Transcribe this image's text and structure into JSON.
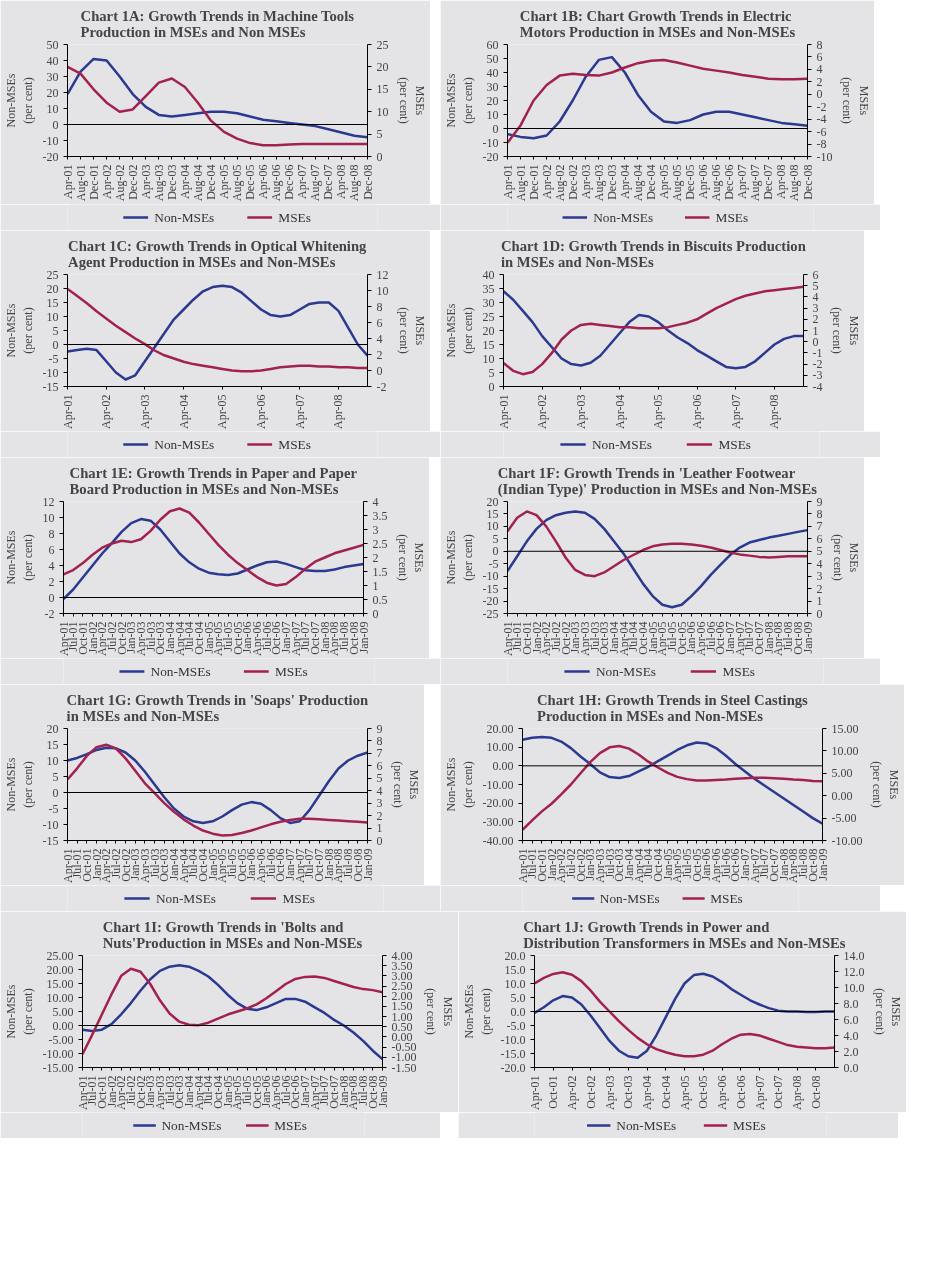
{
  "chart_data": [
    {
      "type": "line",
      "title": "Chart 1A: Growth Trends in Machine Tools Production in MSEs and Non MSEs",
      "ylabel": "Non-MSEs\n(per cent)",
      "y2label": "MSEs\n(per cent)",
      "legend": "bottom",
      "ylim": [
        -20,
        50
      ],
      "yticks": [
        -20,
        -10,
        0,
        10,
        20,
        30,
        40,
        50
      ],
      "y2lim": [
        0,
        25
      ],
      "y2ticks": [
        0,
        5,
        10,
        15,
        20,
        25
      ],
      "ref_lines": [
        {
          "axis": "y",
          "value": 0,
          "color": "#000000"
        }
      ],
      "categories": [
        "Apr-01",
        "Aug-01",
        "Dec-01",
        "Apr-02",
        "Aug-02",
        "Dec-02",
        "Apr-03",
        "Aug-03",
        "Dec-03",
        "Apr-04",
        "Aug-04",
        "Dec-04",
        "Apr-05",
        "Aug-05",
        "Dec-05",
        "Apr-06",
        "Aug-06",
        "Dec-06",
        "Apr-07",
        "Aug-07",
        "Dec-07",
        "Apr-08",
        "Aug-08",
        "Dec-08"
      ],
      "series": [
        {
          "name": "Non-MSEs",
          "color": "#2b3990",
          "values": [
            19,
            33,
            41,
            40,
            30,
            19,
            11,
            6,
            5,
            6,
            7,
            8,
            8,
            7,
            5,
            3,
            2,
            1,
            0,
            -1,
            -3,
            -5,
            -7,
            -8
          ]
        },
        {
          "name": "MSEs",
          "color": "#a3214f",
          "axis": "y2",
          "values": [
            20,
            18.5,
            15,
            12,
            10,
            10.5,
            13.5,
            16.5,
            17.4,
            15.5,
            12,
            8,
            5.5,
            4,
            3,
            2.5,
            2.5,
            2.7,
            2.8,
            2.8,
            2.8,
            2.8,
            2.8,
            2.8
          ]
        }
      ]
    },
    {
      "type": "line",
      "title": "Chart 1B: Chart Growth Trends in Electric Motors Production in MSEs and Non-MSEs",
      "ylabel": "Non-MSEs\n(per cent)",
      "y2label": "MSEs\n(per cent)",
      "legend": "bottom",
      "ylim": [
        -20,
        60
      ],
      "yticks": [
        -20,
        -10,
        0,
        10,
        20,
        30,
        40,
        50,
        60
      ],
      "y2lim": [
        -10,
        8
      ],
      "y2ticks": [
        -10,
        -8,
        -6,
        -4,
        -2,
        0,
        2,
        4,
        6,
        8
      ],
      "ref_lines": [
        {
          "axis": "y",
          "value": 0,
          "color": "#000000"
        }
      ],
      "categories": [
        "Apr-01",
        "Aug-01",
        "Dec-01",
        "Apr-02",
        "Aug-02",
        "Dec-02",
        "Apr-03",
        "Aug-03",
        "Dec-03",
        "Apr-04",
        "Aug-04",
        "Dec-04",
        "Apr-05",
        "Aug-05",
        "Dec-05",
        "Apr-06",
        "Aug-06",
        "Dec-06",
        "Apr-07",
        "Aug-07",
        "Dec-07",
        "Apr-08",
        "Aug-08",
        "Dec-08"
      ],
      "series": [
        {
          "name": "Non-MSEs",
          "color": "#2b3990",
          "values": [
            -4,
            -6,
            -7,
            -5,
            5,
            20,
            37,
            49,
            51,
            40,
            24,
            12,
            5,
            4,
            6,
            10,
            12,
            12,
            10,
            8,
            6,
            4,
            3,
            2
          ]
        },
        {
          "name": "MSEs",
          "color": "#a3214f",
          "axis": "y2",
          "values": [
            -7.8,
            -5,
            -1,
            1.5,
            3,
            3.3,
            3.1,
            3,
            3.5,
            4.3,
            5,
            5.4,
            5.5,
            5.1,
            4.6,
            4.1,
            3.8,
            3.5,
            3.1,
            2.8,
            2.5,
            2.4,
            2.4,
            2.5
          ]
        }
      ]
    },
    {
      "type": "line",
      "title": "Chart 1C: Growth Trends in Optical Whitening Agent Production in MSEs and Non-MSEs",
      "ylabel": "Non-MSEs\n(per cent)",
      "y2label": "MSEs\n(per cent)",
      "legend": "bottom",
      "ylim": [
        -15,
        25
      ],
      "yticks": [
        -15,
        -10,
        -5,
        0,
        5,
        10,
        15,
        20,
        25
      ],
      "y2lim": [
        -2,
        12
      ],
      "y2ticks": [
        -2,
        0,
        2,
        4,
        6,
        8,
        10,
        12
      ],
      "ref_lines": [
        {
          "axis": "y",
          "value": 0,
          "color": "#000000"
        }
      ],
      "categories": [
        "Apr-01",
        null,
        null,
        null,
        "Apr-02",
        null,
        null,
        null,
        "Apr-03",
        null,
        null,
        null,
        "Apr-04",
        null,
        null,
        null,
        "Apr-05",
        null,
        null,
        null,
        "Apr-06",
        null,
        null,
        null,
        "Apr-07",
        null,
        null,
        null,
        "Apr-08",
        null,
        null,
        null
      ],
      "series": [
        {
          "name": "Non-MSEs",
          "color": "#2b3990",
          "values": [
            -2.5,
            -2,
            -1.5,
            -2,
            -6,
            -10,
            -12.5,
            -11,
            -6,
            -1,
            4,
            9,
            12.5,
            16,
            19,
            20.5,
            21,
            20.5,
            18.5,
            15.5,
            12.5,
            10.5,
            10,
            10.5,
            12.5,
            14.5,
            15,
            15,
            12,
            6,
            0,
            -4
          ]
        },
        {
          "name": "MSEs",
          "color": "#a3214f",
          "axis": "y2",
          "values": [
            10.2,
            9.3,
            8.4,
            7.4,
            6.5,
            5.6,
            4.8,
            4,
            3.3,
            2.5,
            1.9,
            1.5,
            1.1,
            0.8,
            0.6,
            0.4,
            0.2,
            0,
            -0.1,
            -0.1,
            0,
            0.2,
            0.4,
            0.5,
            0.6,
            0.6,
            0.5,
            0.5,
            0.4,
            0.4,
            0.3,
            0.3
          ]
        }
      ]
    },
    {
      "type": "line",
      "title": "Chart 1D: Growth Trends in Biscuits Production in MSEs and Non-MSEs",
      "ylabel": "Non-MSEs\n(per cent)",
      "y2label": "MSEs\n(per cent)",
      "legend": "bottom",
      "ylim": [
        0,
        40
      ],
      "yticks": [
        0,
        5,
        10,
        15,
        20,
        25,
        30,
        35,
        40
      ],
      "y2lim": [
        -4,
        6
      ],
      "y2ticks": [
        -4,
        -3,
        -2,
        -1,
        0,
        1,
        2,
        3,
        4,
        5,
        6
      ],
      "categories": [
        "Apr-01",
        null,
        null,
        null,
        "Apr-02",
        null,
        null,
        null,
        "Apr-03",
        null,
        null,
        null,
        "Apr-04",
        null,
        null,
        null,
        "Apr-05",
        null,
        null,
        null,
        "Apr-06",
        null,
        null,
        null,
        "Apr-07",
        null,
        null,
        null,
        "Apr-08",
        null,
        null,
        null
      ],
      "series": [
        {
          "name": "Non-MSEs",
          "color": "#2b3990",
          "values": [
            34,
            31,
            27,
            23,
            18,
            14,
            10,
            8,
            7.5,
            8.5,
            11,
            15,
            19,
            23,
            25.5,
            25,
            23,
            20,
            17.5,
            15.5,
            13,
            11,
            9,
            7,
            6.5,
            7,
            9,
            12,
            15,
            17,
            18,
            18
          ]
        },
        {
          "name": "MSEs",
          "color": "#a3214f",
          "axis": "y2",
          "values": [
            -1.9,
            -2.6,
            -2.9,
            -2.7,
            -2,
            -1,
            0.2,
            1,
            1.5,
            1.6,
            1.5,
            1.4,
            1.3,
            1.3,
            1.2,
            1.2,
            1.2,
            1.3,
            1.5,
            1.7,
            2,
            2.5,
            3,
            3.4,
            3.8,
            4.1,
            4.3,
            4.5,
            4.6,
            4.7,
            4.8,
            4.9
          ]
        }
      ]
    },
    {
      "type": "line",
      "title": "Chart 1E: Growth Trends in Paper and Paper Board Production in MSEs and Non-MSEs",
      "ylabel": "Non-MSEs\n(per cent)",
      "y2label": "MSEs\n(per cent)",
      "legend": "bottom",
      "ylim": [
        -2,
        12
      ],
      "yticks": [
        -2,
        0,
        2,
        4,
        6,
        8,
        10,
        12
      ],
      "y2lim": [
        0,
        4
      ],
      "y2ticks": [
        0,
        0.5,
        1,
        1.5,
        2,
        2.5,
        3,
        3.5,
        4
      ],
      "ref_lines": [
        {
          "axis": "y",
          "value": 0,
          "color": "#000000"
        }
      ],
      "categories": [
        "Apr-01",
        "Jul-01",
        "Oct-01",
        "Jan-02",
        "Apr-02",
        "Jul-02",
        "Oct-02",
        "Jan-03",
        "Apr-03",
        "Jul-03",
        "Oct-03",
        "Jan-04",
        "Apr-04",
        "Jul-04",
        "Oct-04",
        "Jan-05",
        "Apr-05",
        "Jul-05",
        "Oct-05",
        "Jan-06",
        "Apr-06",
        "Jul-06",
        "Oct-06",
        "Jan-07",
        "Apr-07",
        "Jul-07",
        "Oct-07",
        "Jan-08",
        "Apr-08",
        "Jul-08",
        "Oct-08",
        "Jan-09"
      ],
      "series": [
        {
          "name": "Non-MSEs",
          "color": "#2b3990",
          "values": [
            -0.2,
            1,
            2.5,
            4,
            5.5,
            6.8,
            8.2,
            9.3,
            9.8,
            9.6,
            8.5,
            7,
            5.5,
            4.4,
            3.6,
            3.1,
            2.9,
            2.8,
            3,
            3.5,
            4,
            4.4,
            4.5,
            4.2,
            3.8,
            3.4,
            3.3,
            3.3,
            3.5,
            3.8,
            4,
            4.2
          ]
        },
        {
          "name": "MSEs",
          "color": "#a3214f",
          "axis": "y2",
          "values": [
            1.4,
            1.55,
            1.8,
            2.1,
            2.35,
            2.5,
            2.6,
            2.55,
            2.65,
            2.95,
            3.35,
            3.65,
            3.75,
            3.6,
            3.25,
            2.85,
            2.45,
            2.1,
            1.8,
            1.55,
            1.3,
            1.1,
            1.0,
            1.05,
            1.3,
            1.6,
            1.85,
            2.0,
            2.15,
            2.25,
            2.35,
            2.45
          ]
        }
      ]
    },
    {
      "type": "line",
      "title": "Chart 1F: Growth Trends in 'Leather Footwear (Indian Type)' Production in MSEs and Non-MSEs",
      "ylabel": "Non-MSEs\n(per cent)",
      "y2label": "MSEs\n(per cent)",
      "legend": "bottom",
      "ylim": [
        -25,
        20
      ],
      "yticks": [
        -25,
        -20,
        -15,
        -10,
        -5,
        0,
        5,
        10,
        15,
        20
      ],
      "y2lim": [
        0,
        9
      ],
      "y2ticks": [
        0,
        1,
        2,
        3,
        4,
        5,
        6,
        7,
        8,
        9
      ],
      "ref_lines": [
        {
          "axis": "y",
          "value": 0,
          "color": "#000000"
        }
      ],
      "categories": [
        "Apr-01",
        "Jul-01",
        "Oct-01",
        "Jan-02",
        "Apr-02",
        "Jul-02",
        "Oct-02",
        "Jan-03",
        "Apr-03",
        "Jul-03",
        "Oct-03",
        "Jan-04",
        "Apr-04",
        "Jul-04",
        "Oct-04",
        "Jan-05",
        "Apr-05",
        "Jul-05",
        "Oct-05",
        "Jan-06",
        "Apr-06",
        "Jul-06",
        "Oct-06",
        "Jan-07",
        "Apr-07",
        "Jul-07",
        "Oct-07",
        "Jan-08",
        "Apr-08",
        "Jul-08",
        "Oct-08",
        "Jan-09"
      ],
      "series": [
        {
          "name": "Non-MSEs",
          "color": "#2b3990",
          "values": [
            -8,
            -2,
            4,
            9,
            12.5,
            14.5,
            15.5,
            16,
            15.5,
            13,
            9,
            4,
            -1,
            -7,
            -13,
            -18,
            -21.5,
            -22.5,
            -21.5,
            -18,
            -14,
            -9.5,
            -5.5,
            -1.5,
            1.5,
            3.5,
            4.5,
            5.5,
            6.2,
            7,
            7.8,
            8.5
          ]
        },
        {
          "name": "MSEs",
          "color": "#a3214f",
          "axis": "y2",
          "values": [
            6.6,
            7.7,
            8.2,
            7.9,
            7,
            5.8,
            4.5,
            3.5,
            3.1,
            3,
            3.3,
            3.8,
            4.3,
            4.7,
            5.1,
            5.4,
            5.55,
            5.6,
            5.6,
            5.55,
            5.45,
            5.3,
            5.1,
            4.9,
            4.75,
            4.65,
            4.55,
            4.5,
            4.55,
            4.6,
            4.6,
            4.6
          ]
        }
      ]
    },
    {
      "type": "line",
      "title": "Chart 1G: Growth Trends in 'Soaps' Production in MSEs and Non-MSEs",
      "ylabel": "Non-MSEs\n(per cent)",
      "y2label": "MSEs\n(per cent)",
      "legend": "bottom",
      "ylim": [
        -15,
        20
      ],
      "yticks": [
        -15,
        -10,
        -5,
        0,
        5,
        10,
        15,
        20
      ],
      "y2lim": [
        0,
        9
      ],
      "y2ticks": [
        0,
        1,
        2,
        3,
        4,
        5,
        6,
        7,
        8,
        9
      ],
      "ref_lines": [
        {
          "axis": "y",
          "value": 0,
          "color": "#000000"
        }
      ],
      "categories": [
        "Apr-01",
        "Jul-01",
        "Oct-01",
        "Jan-02",
        "Apr-02",
        "Jul-02",
        "Oct-02",
        "Jan-03",
        "Apr-03",
        "Jul-03",
        "Oct-03",
        "Jan-04",
        "Apr-04",
        "Jul-04",
        "Oct-04",
        "Jan-05",
        "Apr-05",
        "Jul-05",
        "Oct-05",
        "Jan-06",
        "Apr-06",
        "Jul-06",
        "Oct-06",
        "Jan-07",
        "Apr-07",
        "Jul-07",
        "Oct-07",
        "Jan-08",
        "Apr-08",
        "Jul-08",
        "Oct-08",
        "Jan-09"
      ],
      "series": [
        {
          "name": "Non-MSEs",
          "color": "#2b3990",
          "values": [
            10,
            10.8,
            12,
            13.3,
            14,
            13.8,
            12.5,
            10,
            6.5,
            2.5,
            -1.5,
            -5,
            -7.5,
            -9,
            -9.5,
            -9,
            -7.5,
            -5.5,
            -3.8,
            -3,
            -3.5,
            -5.5,
            -8,
            -9.5,
            -9,
            -5.5,
            -1,
            3.5,
            7.5,
            10,
            11.5,
            12.5
          ]
        },
        {
          "name": "MSEs",
          "color": "#a3214f",
          "axis": "y2",
          "values": [
            4.9,
            5.8,
            6.8,
            7.5,
            7.7,
            7.4,
            6.6,
            5.6,
            4.6,
            3.8,
            3,
            2.3,
            1.7,
            1.2,
            0.8,
            0.55,
            0.4,
            0.45,
            0.6,
            0.8,
            1.05,
            1.3,
            1.5,
            1.65,
            1.75,
            1.75,
            1.7,
            1.65,
            1.6,
            1.55,
            1.5,
            1.45
          ]
        }
      ]
    },
    {
      "type": "line",
      "title": "Chart 1H: Growth Trends in Steel Castings Production in MSEs and Non-MSEs",
      "ylabel": "Non-MSEs\n(per cent)",
      "y2label": "MSEs\n(per cent)",
      "legend": "bottom",
      "ylim": [
        -40,
        20
      ],
      "yticks": [
        {
          "value": -40,
          "label": "-40.00"
        },
        {
          "value": -30,
          "label": "-30.00"
        },
        {
          "value": -20,
          "label": "-20.00"
        },
        {
          "value": -10,
          "label": "-10.00"
        },
        {
          "value": 0,
          "label": "0.00"
        },
        {
          "value": 10,
          "label": "10.00"
        },
        {
          "value": 20,
          "label": "20.00"
        }
      ],
      "y2lim": [
        -10,
        15
      ],
      "y2ticks": [
        {
          "value": -10,
          "label": "-10.00"
        },
        {
          "value": -5,
          "label": "-5.00"
        },
        {
          "value": 0,
          "label": "0.00"
        },
        {
          "value": 5,
          "label": "5.00"
        },
        {
          "value": 10,
          "label": "10.00"
        },
        {
          "value": 15,
          "label": "15.00"
        }
      ],
      "ref_lines": [
        {
          "axis": "y",
          "value": 0,
          "color": "#000000"
        }
      ],
      "categories": [
        "Apr-01",
        "Jul-01",
        "Oct-01",
        "Jan-02",
        "Apr-02",
        "Jul-02",
        "Oct-02",
        "Jan-03",
        "Apr-03",
        "Jul-03",
        "Oct-03",
        "Jan-04",
        "Apr-04",
        "Jul-04",
        "Oct-04",
        "Jan-05",
        "Apr-05",
        "Jul-05",
        "Oct-05",
        "Jan-06",
        "Apr-06",
        "Jul-06",
        "Oct-06",
        "Jan-07",
        "Apr-07",
        "Jul-07",
        "Oct-07",
        "Jan-08",
        "Apr-08",
        "Jul-08",
        "Oct-08",
        "Jan-09"
      ],
      "series": [
        {
          "name": "Non-MSEs",
          "color": "#2b3990",
          "values": [
            14,
            15,
            15.5,
            15,
            13,
            9.5,
            5,
            1,
            -3.5,
            -6,
            -6.5,
            -5.5,
            -3,
            -0.5,
            2.5,
            5.5,
            8.5,
            11,
            12.5,
            12,
            9.5,
            5.5,
            1,
            -3,
            -7,
            -10.5,
            -14,
            -17.5,
            -21,
            -24.5,
            -28,
            -31
          ]
        },
        {
          "name": "MSEs",
          "color": "#a3214f",
          "axis": "y2",
          "values": [
            -7.6,
            -5.5,
            -3.5,
            -1.8,
            0.3,
            2.5,
            5,
            7.5,
            9.5,
            10.8,
            11.1,
            10.5,
            9.2,
            7.6,
            6.3,
            5.1,
            4.2,
            3.7,
            3.4,
            3.4,
            3.5,
            3.6,
            3.8,
            3.9,
            4,
            4,
            3.9,
            3.8,
            3.6,
            3.5,
            3.3,
            3.2
          ]
        }
      ]
    },
    {
      "type": "line",
      "title": "Chart 1I: Growth Trends in 'Bolts and Nuts'Production in MSEs and Non-MSEs",
      "ylabel": "Non-MSEs\n(per cent)",
      "y2label": "MSEs\n(per cent)",
      "legend": "bottom",
      "ylim": [
        -15,
        25
      ],
      "yticks": [
        {
          "value": -15,
          "label": "-15.00"
        },
        {
          "value": -10,
          "label": "-10.00"
        },
        {
          "value": -5,
          "label": "-5.00"
        },
        {
          "value": 0,
          "label": "0.00"
        },
        {
          "value": 5,
          "label": "5.00"
        },
        {
          "value": 10,
          "label": "10.00"
        },
        {
          "value": 15,
          "label": "15.00"
        },
        {
          "value": 20,
          "label": "20.00"
        },
        {
          "value": 25,
          "label": "25.00"
        }
      ],
      "y2lim": [
        -1.5,
        4
      ],
      "y2ticks": [
        {
          "value": -1.5,
          "label": "-1.50"
        },
        {
          "value": -1,
          "label": "-1.00"
        },
        {
          "value": -0.5,
          "label": "-0.50"
        },
        {
          "value": 0,
          "label": "0.00"
        },
        {
          "value": 0.5,
          "label": "0.50"
        },
        {
          "value": 1,
          "label": "1.00"
        },
        {
          "value": 1.5,
          "label": "1.50"
        },
        {
          "value": 2,
          "label": "2.00"
        },
        {
          "value": 2.5,
          "label": "2.50"
        },
        {
          "value": 3,
          "label": "3.00"
        },
        {
          "value": 3.5,
          "label": "3.50"
        },
        {
          "value": 4,
          "label": "4.00"
        }
      ],
      "ref_lines": [
        {
          "axis": "y",
          "value": 0,
          "color": "#000000"
        }
      ],
      "categories": [
        "Apr-01",
        "Jul-01",
        "Oct-01",
        "Jan-02",
        "Apr-02",
        "Jul-02",
        "Oct-02",
        "Jan-03",
        "Apr-03",
        "Jul-03",
        "Oct-03",
        "Jan-04",
        "Apr-04",
        "Jul-04",
        "Oct-04",
        "Jan-05",
        "Apr-05",
        "Jul-05",
        "Oct-05",
        "Jan-06",
        "Apr-06",
        "Jul-06",
        "Oct-06",
        "Jan-07",
        "Apr-07",
        "Jul-07",
        "Oct-07",
        "Jan-08",
        "Apr-08",
        "Jul-08",
        "Oct-08",
        "Jan-09"
      ],
      "series": [
        {
          "name": "Non-MSEs",
          "color": "#2b3990",
          "values": [
            -1.5,
            -2,
            -1.5,
            0.5,
            4,
            8,
            12.5,
            16.5,
            19.5,
            21,
            21.5,
            21,
            19.5,
            17.5,
            14.5,
            11,
            8,
            6,
            5.5,
            6.5,
            8,
            9.5,
            9.5,
            8.5,
            6.5,
            4.5,
            2,
            0,
            -2.5,
            -5.5,
            -9,
            -12
          ]
        },
        {
          "name": "MSEs",
          "color": "#a3214f",
          "axis": "y2",
          "values": [
            -0.85,
            0.1,
            1.1,
            2.1,
            3,
            3.35,
            3.2,
            2.6,
            1.8,
            1.15,
            0.75,
            0.6,
            0.58,
            0.7,
            0.9,
            1.1,
            1.25,
            1.4,
            1.6,
            1.9,
            2.25,
            2.6,
            2.85,
            2.95,
            2.97,
            2.9,
            2.75,
            2.6,
            2.45,
            2.35,
            2.3,
            2.2
          ]
        }
      ]
    },
    {
      "type": "line",
      "title": "Chart 1J: Growth Trends in Power and Distribution Transformers in MSEs and Non-MSEs",
      "ylabel": "Non-MSEs\n(per cent)",
      "y2label": "MSEs\n(per cent)",
      "legend": "bottom",
      "ylim": [
        -20,
        20
      ],
      "yticks": [
        {
          "value": -20,
          "label": "-20.0"
        },
        {
          "value": -15,
          "label": "-15.0"
        },
        {
          "value": -10,
          "label": "-10.0"
        },
        {
          "value": -5,
          "label": "-5.0"
        },
        {
          "value": 0,
          "label": "0.0"
        },
        {
          "value": 5,
          "label": "5.0"
        },
        {
          "value": 10,
          "label": "10.0"
        },
        {
          "value": 15,
          "label": "15.0"
        },
        {
          "value": 20,
          "label": "20.0"
        }
      ],
      "y2lim": [
        0,
        14
      ],
      "y2ticks": [
        {
          "value": 0,
          "label": "0.0"
        },
        {
          "value": 2,
          "label": "2.0"
        },
        {
          "value": 4,
          "label": "4.0"
        },
        {
          "value": 6,
          "label": "6.0"
        },
        {
          "value": 8,
          "label": "8.0"
        },
        {
          "value": 10,
          "label": "10.0"
        },
        {
          "value": 12,
          "label": "12.0"
        },
        {
          "value": 14,
          "label": "14.0"
        }
      ],
      "ref_lines": [
        {
          "axis": "y",
          "value": 0,
          "color": "#000000"
        }
      ],
      "categories": [
        "Apr-01",
        null,
        "Oct-01",
        null,
        "Apr-02",
        null,
        "Oct-02",
        null,
        "Apr-03",
        null,
        "Oct-03",
        null,
        "Apr-04",
        null,
        "Oct-04",
        null,
        "Apr-05",
        null,
        "Oct-05",
        null,
        "Apr-06",
        null,
        "Oct-06",
        null,
        "Apr-07",
        null,
        "Oct-07",
        null,
        "Apr-08",
        null,
        "Oct-08",
        null,
        null
      ],
      "series": [
        {
          "name": "Non-MSEs",
          "color": "#2b3990",
          "values": [
            -0.5,
            1.5,
            4,
            5.5,
            5,
            2.5,
            -1.5,
            -6,
            -10.5,
            -14,
            -16,
            -16.5,
            -14,
            -8.5,
            -2,
            4.5,
            10,
            13,
            13.5,
            12.5,
            10.5,
            8,
            6,
            4,
            2.5,
            1.2,
            0.3,
            0,
            0,
            -0.2,
            -0.2,
            0,
            0
          ]
        },
        {
          "name": "MSEs",
          "color": "#a3214f",
          "axis": "y2",
          "values": [
            10.5,
            11.2,
            11.7,
            11.9,
            11.6,
            10.8,
            9.6,
            8.2,
            7,
            5.8,
            4.7,
            3.7,
            2.9,
            2.3,
            1.9,
            1.6,
            1.4,
            1.4,
            1.6,
            2.1,
            2.9,
            3.6,
            4.1,
            4.2,
            4,
            3.6,
            3.2,
            2.8,
            2.6,
            2.5,
            2.4,
            2.4,
            2.5
          ]
        }
      ]
    }
  ]
}
